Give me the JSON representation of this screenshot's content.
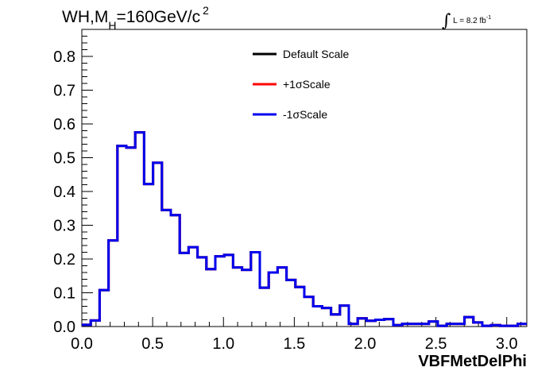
{
  "title": {
    "main": "WH,M",
    "sub": "H",
    "rest": "=160GeV/c",
    "sup": "2"
  },
  "lumi": {
    "integral": "∫",
    "label": "L = 8.2 fb",
    "sup": "-1"
  },
  "chart_data": {
    "type": "histogram",
    "xlabel": "VBFMetDelPhi",
    "ylabel": "",
    "xlim": [
      0,
      3.1416
    ],
    "ylim": [
      0,
      0.88
    ],
    "x_ticks": [
      "0.0",
      "0.5",
      "1.0",
      "1.5",
      "2.0",
      "2.5",
      "3.0"
    ],
    "y_ticks": [
      "0.0",
      "0.1",
      "0.2",
      "0.3",
      "0.4",
      "0.5",
      "0.6",
      "0.7",
      "0.8"
    ],
    "legend_position": "top-center",
    "bin_width": 0.06283,
    "series": [
      {
        "name": "Default Scale",
        "color": "#000000",
        "values": [
          0.005,
          0.018,
          0.108,
          0.255,
          0.535,
          0.53,
          0.575,
          0.422,
          0.485,
          0.345,
          0.33,
          0.218,
          0.235,
          0.205,
          0.17,
          0.208,
          0.212,
          0.175,
          0.168,
          0.22,
          0.115,
          0.16,
          0.175,
          0.138,
          0.117,
          0.088,
          0.06,
          0.055,
          0.036,
          0.062,
          0.008,
          0.024,
          0.017,
          0.02,
          0.022,
          0.004,
          0.008,
          0.008,
          0.008,
          0.015,
          0.002,
          0.008,
          0.008,
          0.028,
          0.012,
          0.002,
          0.004,
          0.002,
          0.002,
          0.008
        ]
      },
      {
        "name": "+1σScale",
        "color": "#ff0000",
        "values": [
          0.005,
          0.018,
          0.108,
          0.255,
          0.535,
          0.53,
          0.575,
          0.422,
          0.485,
          0.345,
          0.33,
          0.218,
          0.235,
          0.205,
          0.17,
          0.208,
          0.212,
          0.175,
          0.168,
          0.22,
          0.115,
          0.16,
          0.175,
          0.138,
          0.117,
          0.088,
          0.06,
          0.055,
          0.036,
          0.062,
          0.008,
          0.024,
          0.017,
          0.02,
          0.022,
          0.004,
          0.008,
          0.008,
          0.008,
          0.015,
          0.002,
          0.008,
          0.008,
          0.028,
          0.012,
          0.002,
          0.004,
          0.002,
          0.002,
          0.008
        ]
      },
      {
        "name": "-1σScale",
        "color": "#0000ee",
        "values": [
          0.005,
          0.018,
          0.108,
          0.255,
          0.535,
          0.53,
          0.575,
          0.422,
          0.485,
          0.345,
          0.33,
          0.218,
          0.235,
          0.205,
          0.17,
          0.208,
          0.212,
          0.175,
          0.168,
          0.22,
          0.115,
          0.16,
          0.175,
          0.138,
          0.117,
          0.088,
          0.06,
          0.055,
          0.036,
          0.062,
          0.008,
          0.024,
          0.017,
          0.02,
          0.022,
          0.004,
          0.008,
          0.008,
          0.008,
          0.015,
          0.002,
          0.008,
          0.008,
          0.028,
          0.012,
          0.002,
          0.004,
          0.002,
          0.002,
          0.008
        ]
      }
    ]
  }
}
